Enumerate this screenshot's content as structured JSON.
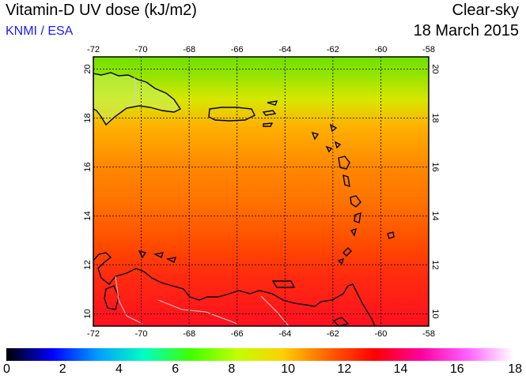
{
  "title": "Vitamin-D UV dose (kJ/m2)",
  "credit": "KNMI / ESA",
  "mode": "Clear-sky",
  "date": "18 March 2015",
  "map": {
    "lon_ticks": [
      "-72",
      "-70",
      "-68",
      "-66",
      "-64",
      "-62",
      "-60",
      "-58"
    ],
    "lat_ticks": [
      "20",
      "18",
      "16",
      "14",
      "12",
      "10"
    ],
    "lon_range": [
      -72,
      -58
    ],
    "lat_range": [
      9.5,
      20.5
    ],
    "grid": true
  },
  "colorbar": {
    "labels": [
      "0",
      "2",
      "4",
      "6",
      "8",
      "10",
      "12",
      "14",
      "16",
      "18"
    ],
    "range": [
      0,
      18
    ],
    "colors": [
      "#000000",
      "#0000ff",
      "#00a0ff",
      "#00ffc0",
      "#40ff00",
      "#c0ff00",
      "#ffd000",
      "#ff6000",
      "#ff0000",
      "#ff00a0",
      "#ff60ff",
      "#ffffff"
    ]
  },
  "field": {
    "description_units": "kJ/m2",
    "north_value": 9.0,
    "south_value": 12.6
  }
}
